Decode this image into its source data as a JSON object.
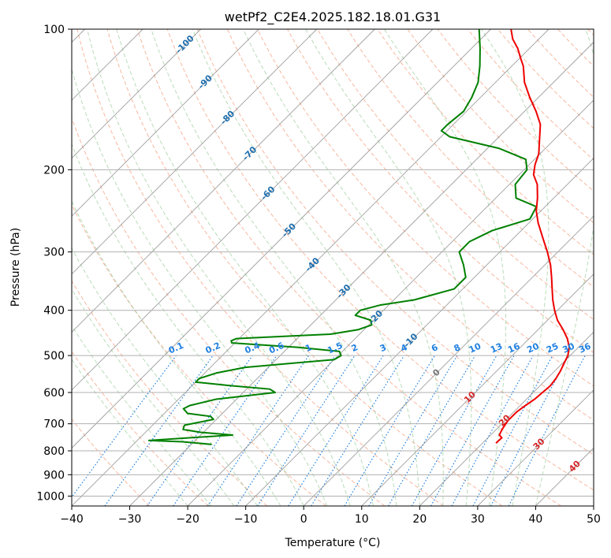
{
  "chart_data": {
    "type": "line",
    "title": "wetPf2_C2E4.2025.182.18.01.G31",
    "xlabel": "Temperature (°C)",
    "ylabel": "Pressure (hPa)",
    "xlim": [
      -40,
      50
    ],
    "ylim": [
      1050,
      100
    ],
    "y_scale": "log",
    "grid": true,
    "x_ticks": [
      "−40",
      "−30",
      "−20",
      "−10",
      "0",
      "10",
      "20",
      "30",
      "40",
      "50"
    ],
    "y_ticks": [
      "100",
      "200",
      "300",
      "400",
      "500",
      "600",
      "700",
      "800",
      "900",
      "1000"
    ],
    "colors": {
      "temperature": "#ee0000",
      "dewpoint": "#008000",
      "mixing_ratio": "#2080e0",
      "dry_adiabat": "#f4a080",
      "moist_adiabat": "#80c080",
      "isotherm": "#888888",
      "isotherm_labels_cold": "#1f6fae",
      "isotherm_labels_warm": "#d62728"
    },
    "series": [
      {
        "line": "temperature",
        "pressure": [
          770,
          750,
          740,
          720,
          690,
          660,
          640,
          620,
          600,
          580,
          560,
          540,
          520,
          500,
          480,
          460,
          440,
          420,
          400,
          380,
          360,
          340,
          320,
          300,
          280,
          260,
          245,
          230,
          215,
          205,
          195,
          185,
          170,
          160,
          150,
          140,
          130,
          120,
          115,
          110,
          105,
          100
        ],
        "temperature": [
          22.3,
          22.4,
          21.5,
          21.0,
          20.5,
          20.5,
          20.9,
          21.4,
          21.6,
          21.8,
          21.5,
          21.0,
          20.3,
          19.6,
          18.4,
          16.6,
          14.3,
          11.7,
          9.5,
          7.4,
          5.4,
          3.3,
          1.0,
          -1.8,
          -5.0,
          -8.4,
          -10.8,
          -12.8,
          -15.2,
          -17.5,
          -19.0,
          -20.2,
          -23.0,
          -25.0,
          -28.0,
          -31.5,
          -35.0,
          -38.0,
          -40.0,
          -42.0,
          -44.5,
          -46.5
        ]
      },
      {
        "line": "dewpoint",
        "pressure": [
          775,
          765,
          760,
          740,
          730,
          720,
          705,
          685,
          675,
          665,
          650,
          640,
          620,
          600,
          590,
          580,
          570,
          560,
          545,
          530,
          510,
          500,
          490,
          480,
          470,
          465,
          460,
          455,
          450,
          440,
          430,
          420,
          410,
          400,
          390,
          380,
          360,
          340,
          320,
          300,
          285,
          270,
          255,
          240,
          230,
          215,
          200,
          190,
          180,
          170,
          165,
          160,
          150,
          140,
          130,
          120,
          110,
          100
        ],
        "dewpoint": [
          -26.5,
          -32.0,
          -38.0,
          -24.5,
          -30.5,
          -34.0,
          -34.5,
          -30.5,
          -31.5,
          -36.0,
          -37.5,
          -37.0,
          -33.5,
          -24.5,
          -26.0,
          -33.5,
          -40.0,
          -40.0,
          -38.0,
          -34.0,
          -20.0,
          -19.5,
          -20.5,
          -28.5,
          -40.5,
          -41.0,
          -40.5,
          -33.0,
          -25.0,
          -21.0,
          -19.5,
          -20.5,
          -24.0,
          -24.0,
          -21.5,
          -16.5,
          -11.5,
          -11.5,
          -14.0,
          -17.0,
          -17.0,
          -15.0,
          -10.5,
          -11.5,
          -16.5,
          -19.0,
          -19.5,
          -21.5,
          -28.0,
          -38.5,
          -41.0,
          -41.0,
          -40.5,
          -41.5,
          -43.0,
          -45.5,
          -48.5,
          -52.0
        ]
      }
    ],
    "isotherm_labels": [
      "-100",
      "-90",
      "-80",
      "-70",
      "-60",
      "-50",
      "-40",
      "-30",
      "-20",
      "-10",
      "0",
      "10",
      "20",
      "30",
      "40"
    ],
    "mixing_ratio_labels": [
      "0.1",
      "0.2",
      "0.4",
      "0.6",
      "1",
      "1.5",
      "2",
      "3",
      "4",
      "6",
      "8",
      "10",
      "13",
      "16",
      "20",
      "25",
      "30",
      "36"
    ]
  }
}
